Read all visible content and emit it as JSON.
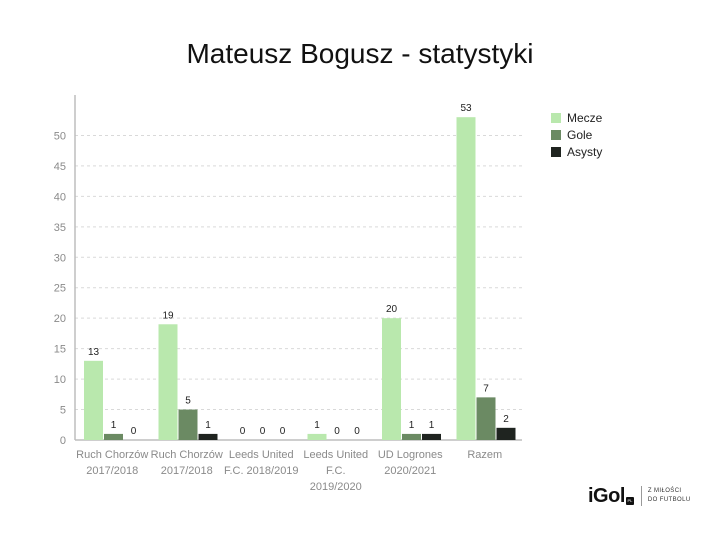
{
  "chart_data": {
    "type": "bar",
    "title": "Mateusz Bogusz - statystyki",
    "xlabel": "",
    "ylabel": "",
    "ylim": [
      0,
      55
    ],
    "yticks": [
      0,
      5,
      10,
      15,
      20,
      25,
      30,
      35,
      40,
      45,
      50
    ],
    "grid": "horizontal dashed",
    "legend_position": "top-right",
    "categories": [
      [
        "Ruch Chorzów",
        "2017/2018"
      ],
      [
        "Ruch Chorzów",
        "2017/2018"
      ],
      [
        "Leeds United",
        "F.C. 2018/2019"
      ],
      [
        "Leeds United",
        "F.C.",
        "2019/2020"
      ],
      [
        "UD Logrones",
        "2020/2021"
      ],
      [
        "Razem"
      ]
    ],
    "series": [
      {
        "name": "Mecze",
        "color": "#b9e8ad",
        "values": [
          13,
          19,
          0,
          1,
          20,
          53
        ]
      },
      {
        "name": "Gole",
        "color": "#6b8a63",
        "values": [
          1,
          5,
          0,
          0,
          1,
          7
        ]
      },
      {
        "name": "Asysty",
        "color": "#1f2420",
        "values": [
          0,
          1,
          0,
          0,
          1,
          2
        ]
      }
    ]
  },
  "logo": {
    "main": "iGol",
    "badge": "PL",
    "tagline": "Z MIŁOŚCI\nDO FUTBOLU"
  }
}
